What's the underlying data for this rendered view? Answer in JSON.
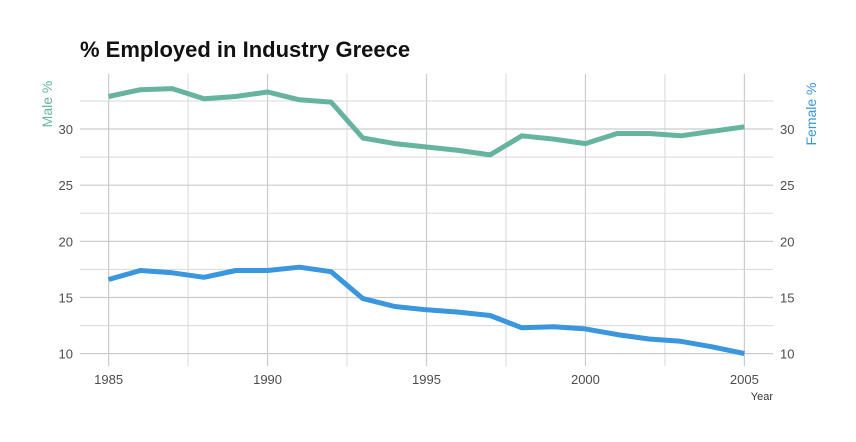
{
  "chart_data": {
    "type": "line",
    "title": "% Employed in Industry Greece",
    "xlabel": "Year",
    "ylabel_left": "Male %",
    "ylabel_right": "Female %",
    "xlim": [
      1984.1,
      2005.9
    ],
    "ylim": [
      8.9,
      34.9
    ],
    "xticks": [
      1985,
      1990,
      1995,
      2000,
      2005
    ],
    "yticks": [
      10,
      15,
      20,
      25,
      30
    ],
    "grid": true,
    "x": [
      1985,
      1986,
      1987,
      1988,
      1989,
      1990,
      1991,
      1992,
      1993,
      1994,
      1995,
      1996,
      1997,
      1998,
      1999,
      2000,
      2001,
      2002,
      2003,
      2004,
      2005
    ],
    "series": [
      {
        "name": "Male %",
        "color": "#66b3a0",
        "values": [
          32.9,
          33.5,
          33.6,
          32.7,
          32.9,
          33.3,
          32.6,
          32.4,
          29.2,
          28.7,
          28.4,
          28.1,
          27.7,
          29.4,
          29.1,
          28.7,
          29.6,
          29.6,
          29.4,
          29.8,
          30.2
        ]
      },
      {
        "name": "Female %",
        "color": "#3a96dd",
        "values": [
          16.6,
          17.4,
          17.2,
          16.8,
          17.4,
          17.4,
          17.7,
          17.3,
          14.9,
          14.2,
          13.9,
          13.7,
          13.4,
          12.3,
          12.4,
          12.2,
          11.7,
          11.3,
          11.1,
          10.6,
          10.0
        ]
      }
    ]
  }
}
